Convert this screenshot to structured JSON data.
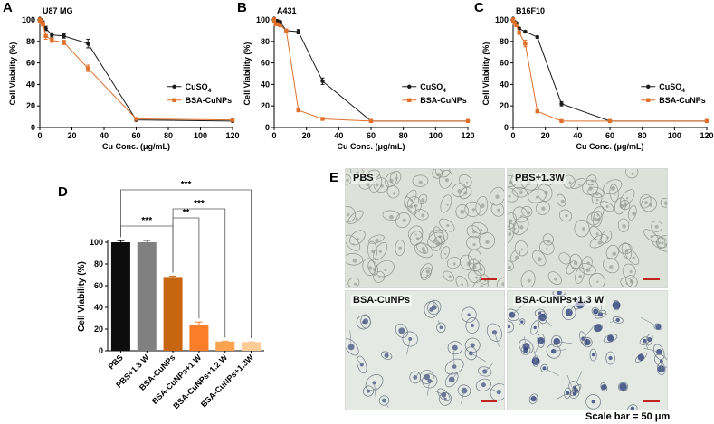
{
  "panel_letters": [
    "A",
    "B",
    "C",
    "D",
    "E"
  ],
  "chart_data": [
    {
      "panel": "A",
      "type": "line",
      "title": "U87 MG",
      "xlabel": "Cu Conc. (μg/mL)",
      "ylabel": "Cell Viability (%)",
      "xlim": [
        0,
        120
      ],
      "ylim": [
        0,
        100
      ],
      "xticks": [
        0,
        20,
        40,
        60,
        80,
        100,
        120
      ],
      "yticks": [
        0,
        20,
        40,
        60,
        80,
        100
      ],
      "legend_position": "right",
      "series": [
        {
          "name": "CuSO",
          "name_sub": "4",
          "color": "#1a1a1a",
          "marker": "circle",
          "x": [
            0,
            1,
            2,
            3.75,
            7.5,
            15,
            30,
            60,
            120
          ],
          "y": [
            100,
            99,
            97,
            92,
            86,
            85,
            78,
            7,
            6
          ],
          "err": [
            2,
            2,
            2,
            2,
            2,
            2,
            4,
            1,
            1
          ]
        },
        {
          "name": "BSA-CuNPs",
          "color": "#e0702a",
          "marker": "square",
          "x": [
            0,
            1,
            2,
            3.75,
            7.5,
            15,
            30,
            60,
            120
          ],
          "y": [
            100,
            98,
            96,
            85,
            81,
            79,
            55,
            8,
            7
          ],
          "err": [
            2,
            2,
            2,
            3,
            2,
            2,
            3,
            1,
            1
          ]
        }
      ]
    },
    {
      "panel": "B",
      "type": "line",
      "title": "A431",
      "xlabel": "Cu Conc. (μg/mL)",
      "ylabel": "Cell Viability (%)",
      "xlim": [
        0,
        120
      ],
      "ylim": [
        0,
        100
      ],
      "xticks": [
        0,
        20,
        40,
        60,
        80,
        100,
        120
      ],
      "yticks": [
        0,
        20,
        40,
        60,
        80,
        100
      ],
      "legend_position": "right",
      "series": [
        {
          "name": "CuSO",
          "name_sub": "4",
          "color": "#1a1a1a",
          "marker": "circle",
          "x": [
            0,
            1,
            2,
            3.75,
            7.5,
            15,
            30,
            60,
            120
          ],
          "y": [
            100,
            99,
            99,
            98,
            90,
            89,
            43,
            6,
            6
          ],
          "err": [
            2,
            1,
            1,
            1,
            1,
            2,
            3,
            1,
            1
          ]
        },
        {
          "name": "BSA-CuNPs",
          "color": "#e0702a",
          "marker": "square",
          "x": [
            0,
            1,
            2,
            3.75,
            7.5,
            15,
            30,
            60,
            120
          ],
          "y": [
            100,
            96,
            96,
            95,
            90,
            16,
            8,
            6,
            6
          ],
          "err": [
            2,
            1,
            1,
            1,
            1,
            1,
            1,
            1,
            1
          ]
        }
      ]
    },
    {
      "panel": "C",
      "type": "line",
      "title": "B16F10",
      "xlabel": "Cu Conc. (μg/mL)",
      "ylabel": "Cell Viability (%)",
      "xlim": [
        0,
        120
      ],
      "ylim": [
        0,
        100
      ],
      "xticks": [
        0,
        20,
        40,
        60,
        80,
        100,
        120
      ],
      "yticks": [
        0,
        20,
        40,
        60,
        80,
        100
      ],
      "legend_position": "right",
      "series": [
        {
          "name": "CuSO",
          "name_sub": "4",
          "color": "#1a1a1a",
          "marker": "circle",
          "x": [
            0,
            1,
            2,
            3.75,
            7.5,
            15,
            30,
            60,
            120
          ],
          "y": [
            100,
            98,
            97,
            92,
            89,
            84,
            22,
            6,
            6
          ],
          "err": [
            2,
            1,
            1,
            1,
            1,
            1,
            2,
            1,
            1
          ]
        },
        {
          "name": "BSA-CuNPs",
          "color": "#e0702a",
          "marker": "square",
          "x": [
            0,
            1,
            2,
            3.75,
            7.5,
            15,
            30,
            60,
            120
          ],
          "y": [
            100,
            97,
            95,
            88,
            78,
            15,
            6,
            6,
            6
          ],
          "err": [
            2,
            1,
            1,
            1,
            3,
            1,
            1,
            1,
            1
          ]
        }
      ]
    },
    {
      "panel": "D",
      "type": "bar",
      "ylabel": "Cell Viability (%)",
      "ylim": [
        0,
        100
      ],
      "yticks": [
        0,
        20,
        40,
        60,
        80,
        100
      ],
      "categories": [
        "PBS",
        "PBS+1.3 W",
        "BSA-CuNPs",
        "BSA-CuNPs+1 W",
        "BSA-CuNPs+1.2 W",
        "BSA-CuNPs+1.3W"
      ],
      "values": [
        100,
        100,
        68,
        24,
        8.5,
        8
      ],
      "errors": [
        1.5,
        1.5,
        0.8,
        2.5,
        0.4,
        0.3
      ],
      "colors": [
        "#0d0d0d",
        "#808080",
        "#c8650f",
        "#fb7d27",
        "#fda24f",
        "#fccb96"
      ],
      "significance": [
        {
          "from": 0,
          "to": 2,
          "label": "***"
        },
        {
          "from": 2,
          "to": 3,
          "label": "**"
        },
        {
          "from": 2,
          "to": 4,
          "label": "***"
        },
        {
          "from": 0,
          "to": 5,
          "label": "***"
        }
      ]
    }
  ],
  "micrographs": {
    "panel": "E",
    "labels": [
      "PBS",
      "PBS+1.3W",
      "BSA-CuNPs",
      "BSA-CuNPs+1.3 W"
    ],
    "scale_bar_text": "Scale bar = 50 μm"
  }
}
